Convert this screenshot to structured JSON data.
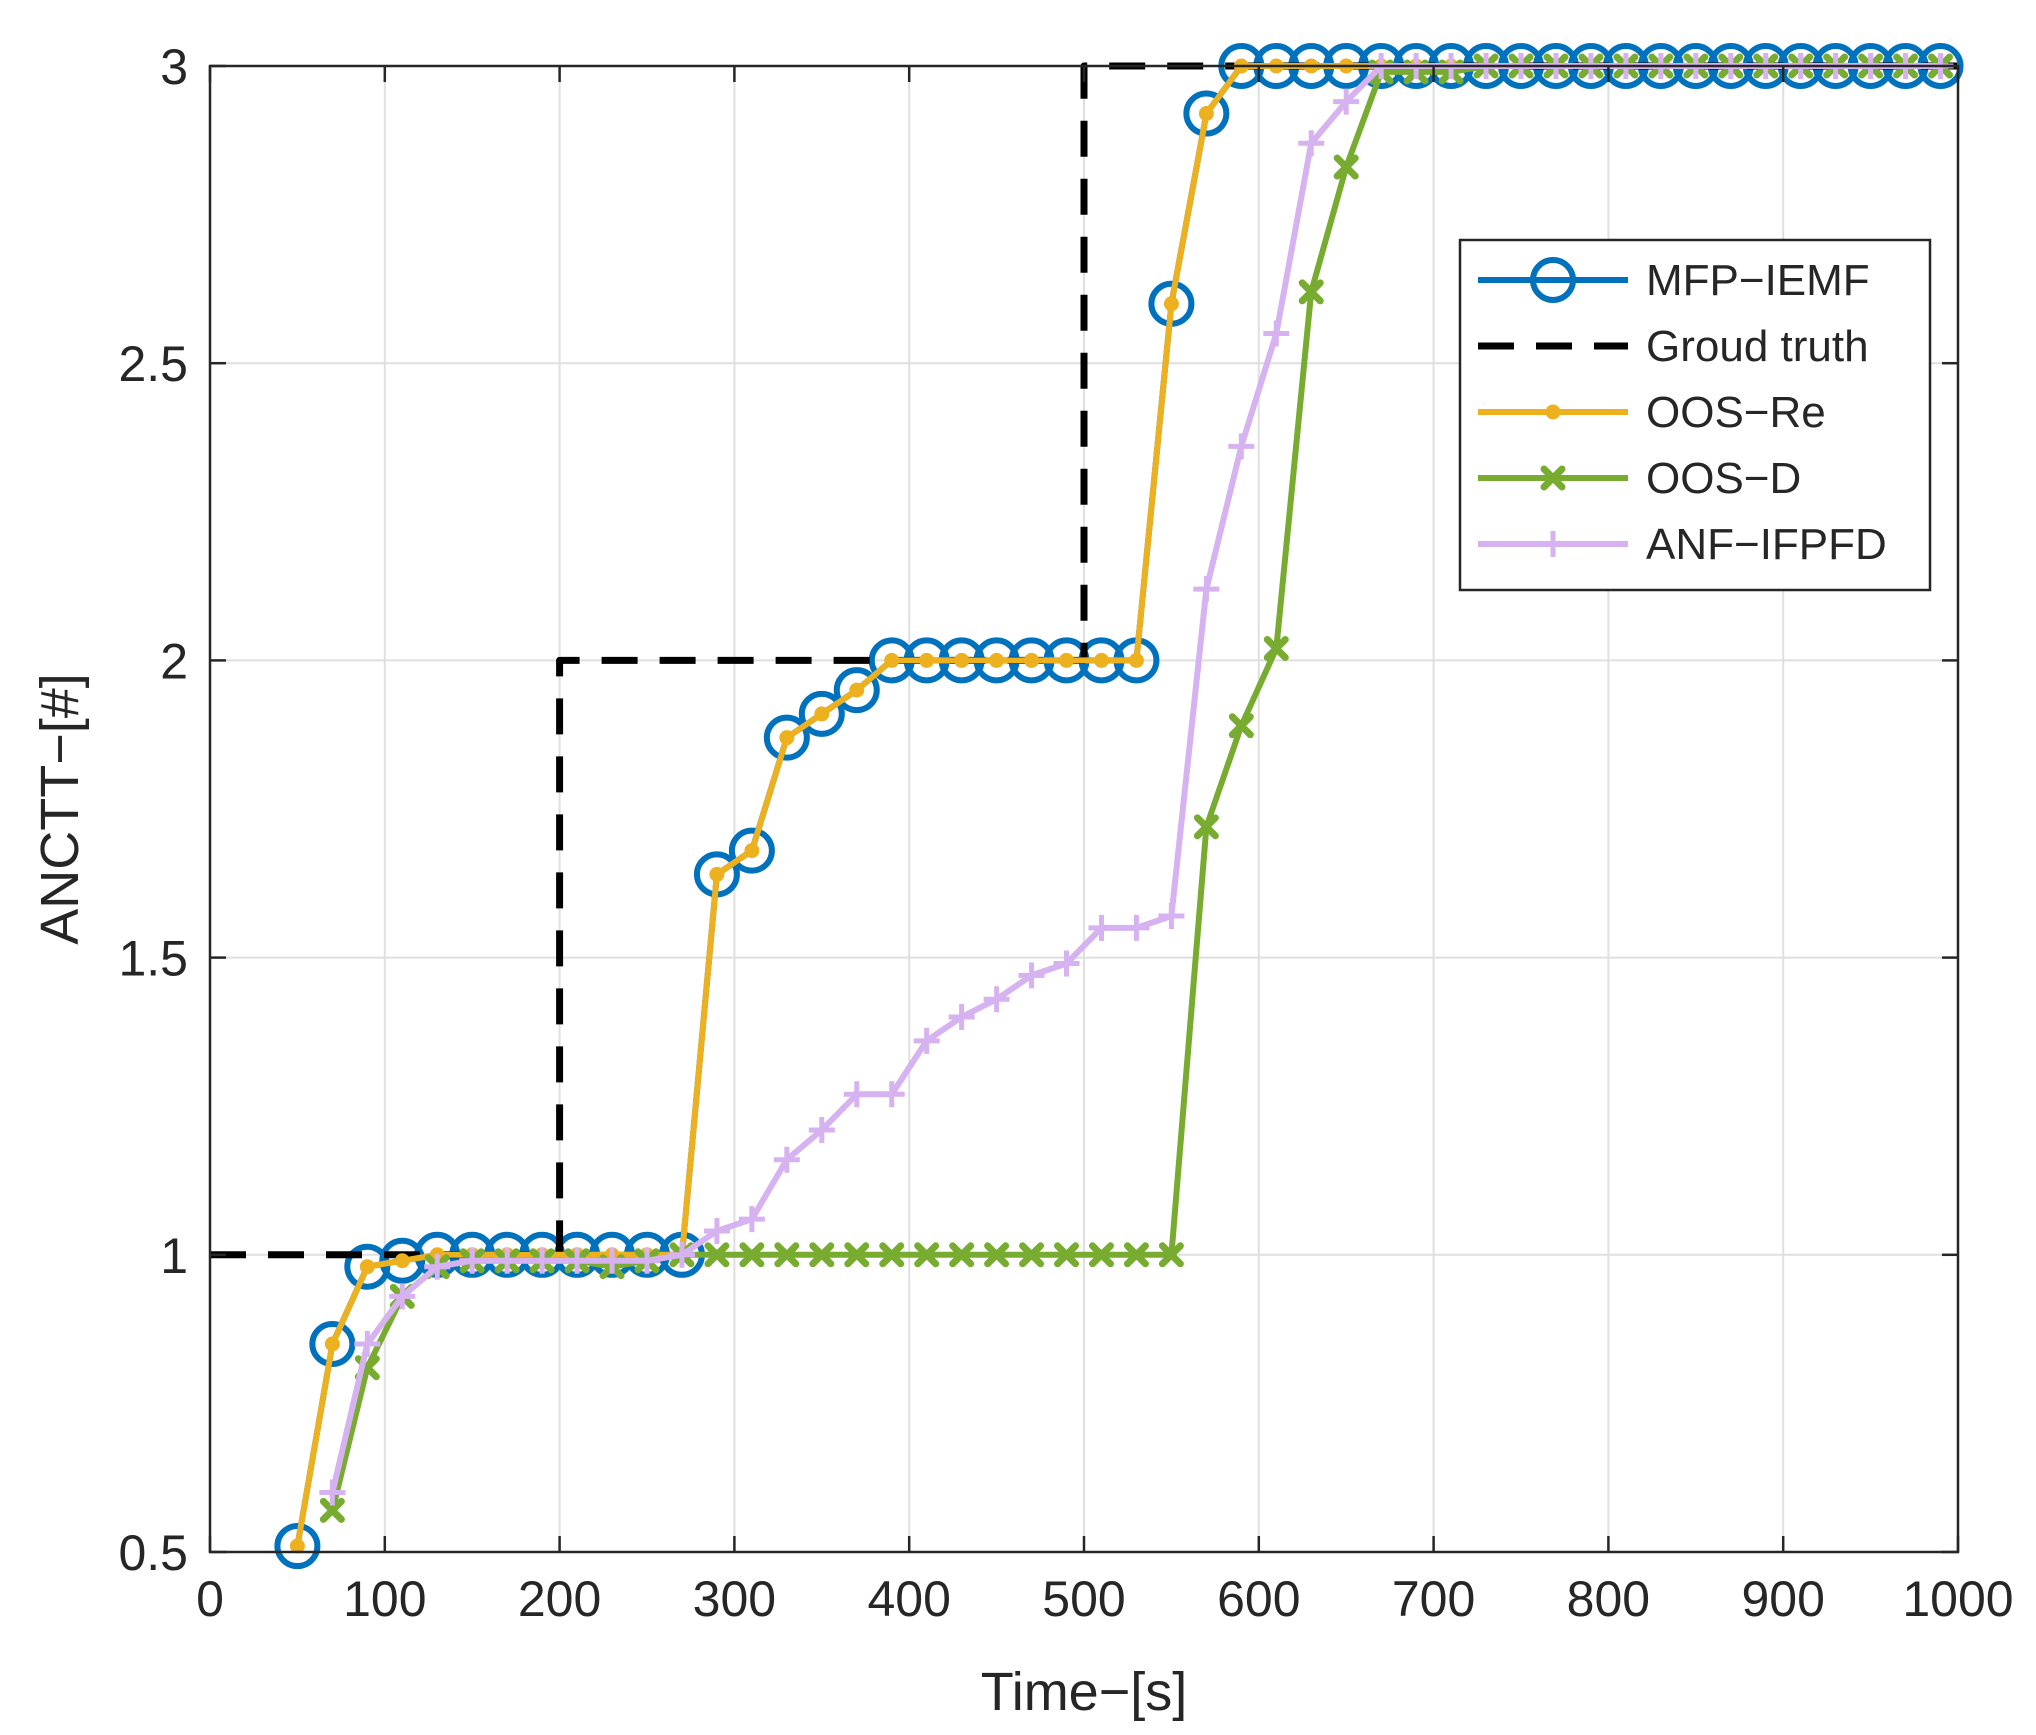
{
  "chart_data": {
    "type": "line",
    "xlabel": "Time−[s]",
    "ylabel": "ANCTT−[#]",
    "xlim": [
      0,
      1000
    ],
    "ylim": [
      0.5,
      3
    ],
    "xticks": [
      0,
      100,
      200,
      300,
      400,
      500,
      600,
      700,
      800,
      900,
      1000
    ],
    "xtick_labels": [
      "0",
      "100",
      "200",
      "300",
      "400",
      "500",
      "600",
      "700",
      "800",
      "900",
      "1000"
    ],
    "yticks": [
      0.5,
      1,
      1.5,
      2,
      2.5,
      3
    ],
    "ytick_labels": [
      "0.5",
      "1",
      "1.5",
      "2",
      "2.5",
      "3"
    ],
    "grid": true,
    "legend_position": "top-right",
    "series": [
      {
        "name": "MFP−IEMF",
        "color": "#0072BD",
        "marker": "circle",
        "dash": "solid",
        "x": [
          50,
          70,
          90,
          110,
          130,
          150,
          170,
          190,
          210,
          230,
          250,
          270,
          290,
          310,
          330,
          350,
          370,
          390,
          410,
          430,
          450,
          470,
          490,
          510,
          530,
          550,
          570,
          590,
          610,
          630,
          650,
          670,
          690,
          710,
          730,
          750,
          770,
          790,
          810,
          830,
          850,
          870,
          890,
          910,
          930,
          950,
          970,
          990
        ],
        "y": [
          0.51,
          0.85,
          0.98,
          0.99,
          1,
          1,
          1,
          1,
          1,
          1,
          1,
          1,
          1.64,
          1.68,
          1.87,
          1.91,
          1.95,
          2,
          2,
          2,
          2,
          2,
          2,
          2,
          2,
          2.6,
          2.92,
          3,
          3,
          3,
          3,
          3,
          3,
          3,
          3,
          3,
          3,
          3,
          3,
          3,
          3,
          3,
          3,
          3,
          3,
          3,
          3,
          3
        ]
      },
      {
        "name": "Groud truth",
        "color": "#000000",
        "marker": "none",
        "dash": "dashed",
        "x": [
          0,
          200,
          200,
          500,
          500,
          1000
        ],
        "y": [
          1,
          1,
          2,
          2,
          3,
          3
        ]
      },
      {
        "name": "OOS−Re",
        "color": "#EDB120",
        "marker": "dot",
        "dash": "solid",
        "x": [
          50,
          70,
          90,
          110,
          130,
          150,
          170,
          190,
          210,
          230,
          250,
          270,
          290,
          310,
          330,
          350,
          370,
          390,
          410,
          430,
          450,
          470,
          490,
          510,
          530,
          550,
          570,
          590,
          610,
          630,
          650,
          670,
          690,
          710,
          730,
          750,
          770,
          790,
          810,
          830,
          850,
          870,
          890,
          910,
          930,
          950,
          970,
          990
        ],
        "y": [
          0.51,
          0.85,
          0.98,
          0.99,
          1,
          1,
          1,
          1,
          1,
          1,
          1,
          1,
          1.64,
          1.68,
          1.87,
          1.91,
          1.95,
          2,
          2,
          2,
          2,
          2,
          2,
          2,
          2,
          2.6,
          2.92,
          3,
          3,
          3,
          3,
          3,
          3,
          3,
          3,
          3,
          3,
          3,
          3,
          3,
          3,
          3,
          3,
          3,
          3,
          3,
          3,
          3
        ]
      },
      {
        "name": "OOS−D",
        "color": "#77AC30",
        "marker": "x",
        "dash": "solid",
        "x": [
          70,
          90,
          110,
          130,
          150,
          170,
          190,
          210,
          230,
          250,
          270,
          290,
          310,
          330,
          350,
          370,
          390,
          410,
          430,
          450,
          470,
          490,
          510,
          530,
          550,
          570,
          590,
          610,
          630,
          650,
          670,
          690,
          710,
          730,
          750,
          770,
          790,
          810,
          830,
          850,
          870,
          890,
          910,
          930,
          950,
          970,
          990
        ],
        "y": [
          0.57,
          0.81,
          0.93,
          0.98,
          0.99,
          0.99,
          0.99,
          0.99,
          0.98,
          0.99,
          1,
          1,
          1,
          1,
          1,
          1,
          1,
          1,
          1,
          1,
          1,
          1,
          1,
          1,
          1,
          1.72,
          1.89,
          2.02,
          2.62,
          2.83,
          2.99,
          2.99,
          2.99,
          3,
          3,
          3,
          3,
          3,
          3,
          3,
          3,
          3,
          3,
          3,
          3,
          3,
          3
        ]
      },
      {
        "name": "ANF−IFPFD",
        "color": "#D6B2F0",
        "marker": "plus",
        "dash": "solid",
        "x": [
          70,
          90,
          110,
          130,
          150,
          170,
          190,
          210,
          230,
          250,
          270,
          290,
          310,
          330,
          350,
          370,
          390,
          410,
          430,
          450,
          470,
          490,
          510,
          530,
          550,
          570,
          590,
          610,
          630,
          650,
          670,
          690,
          710,
          730,
          750,
          770,
          790,
          810,
          830,
          850,
          870,
          890,
          910,
          930,
          950,
          970,
          990
        ],
        "y": [
          0.6,
          0.85,
          0.93,
          0.98,
          0.99,
          0.99,
          0.99,
          0.99,
          0.99,
          0.99,
          1,
          1.04,
          1.06,
          1.16,
          1.21,
          1.27,
          1.27,
          1.36,
          1.4,
          1.43,
          1.47,
          1.49,
          1.55,
          1.55,
          1.57,
          2.12,
          2.36,
          2.55,
          2.87,
          2.94,
          3,
          3,
          3,
          3,
          3,
          3,
          3,
          3,
          3,
          3,
          3,
          3,
          3,
          3,
          3,
          3,
          3
        ]
      }
    ]
  }
}
